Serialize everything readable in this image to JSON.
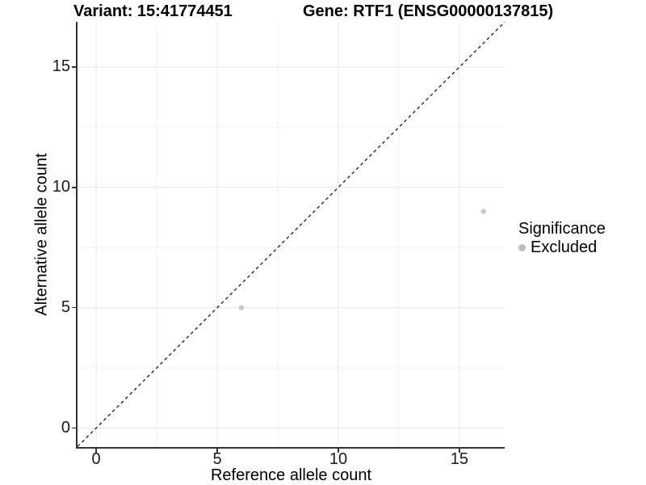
{
  "chart_data": {
    "type": "scatter",
    "titles": {
      "left": "Variant: 15:41774451",
      "right": "Gene: RTF1 (ENSG00000137815)"
    },
    "xlabel": "Reference allele count",
    "ylabel": "Alternative allele count",
    "xlim": [
      -0.77,
      16.87
    ],
    "ylim": [
      -0.79,
      16.88
    ],
    "x_ticks": [
      0,
      5,
      10,
      15
    ],
    "y_ticks": [
      0,
      5,
      10,
      15
    ],
    "x_minor_gridlines": [
      2.5,
      7.5,
      12.5
    ],
    "y_minor_gridlines": [
      2.5,
      7.5,
      12.5
    ],
    "grid": "major and minor, light gray, on white background",
    "identity_line": {
      "equation": "y = x",
      "style": "dashed",
      "color": "#1a1a1a"
    },
    "series": [
      {
        "name": "Excluded",
        "color": "#c8c8c8",
        "points": [
          {
            "x": 6,
            "y": 5
          },
          {
            "x": 16,
            "y": 9
          }
        ]
      }
    ],
    "legend": {
      "title": "Significance",
      "position": "right",
      "items": [
        {
          "label": "Excluded",
          "color": "#bebebe"
        }
      ]
    },
    "colors": {
      "background": "#ffffff",
      "axis_line": "#333333",
      "grid_major": "#e8e8e8",
      "grid_minor": "#f2f2f2",
      "tick_text": "#1a1a1a",
      "title_text": "#000000",
      "point": "#c8c8c8",
      "legend_point": "#bebebe"
    }
  }
}
